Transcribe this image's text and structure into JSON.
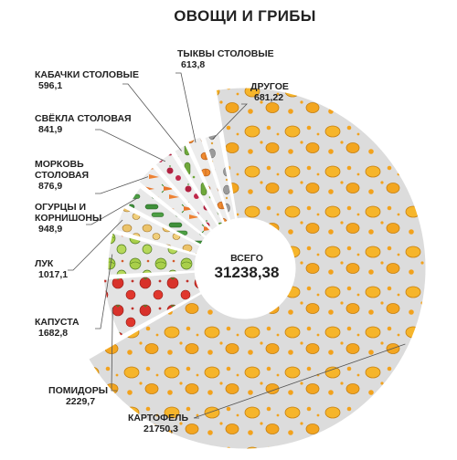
{
  "chart_data": {
    "type": "pie",
    "title": "ОВОЩИ И ГРИБЫ",
    "total_label": "ВСЕГО",
    "total_value": "31238,38",
    "slices": [
      {
        "name": "КАРТОФЕЛЬ",
        "value": 21750.3,
        "value_label": "21750,3",
        "color": "#f0a21e"
      },
      {
        "name": "ПОМИДОРЫ",
        "value": 2229.7,
        "value_label": "2229,7",
        "color": "#d8322b"
      },
      {
        "name": "КАПУСТА",
        "value": 1682.8,
        "value_label": "1682,8",
        "color": "#9bc23c"
      },
      {
        "name": "ЛУК",
        "value": 1017.1,
        "value_label": "1017,1",
        "color": "#e9c46a"
      },
      {
        "name": "ОГУРЦЫ И КОРНИШОНЫ",
        "value": 948.9,
        "value_label": "948,9",
        "color": "#3f8f3a"
      },
      {
        "name": "МОРКОВЬ СТОЛОВАЯ",
        "value": 876.9,
        "value_label": "876,9",
        "color": "#e8752a"
      },
      {
        "name": "СВЁКЛА СТОЛОВАЯ",
        "value": 841.9,
        "value_label": "841,9",
        "color": "#a3213f"
      },
      {
        "name": "КАБАЧКИ СТОЛОВЫЕ",
        "value": 596.1,
        "value_label": "596,1",
        "color": "#6fa83b"
      },
      {
        "name": "ТЫКВЫ СТОЛОВЫЕ",
        "value": 613.8,
        "value_label": "613,8",
        "color": "#ef8a2e"
      },
      {
        "name": "ДРУГОЕ",
        "value": 681.22,
        "value_label": "681,22",
        "color": "#8a8a8a"
      }
    ]
  }
}
